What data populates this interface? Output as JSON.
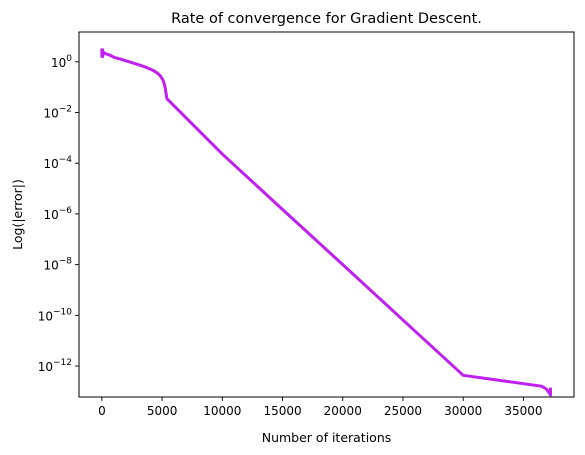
{
  "chart_data": {
    "type": "line",
    "title": "Rate of convergence for Gradient Descent.",
    "xlabel": "Number of iterations",
    "ylabel": "Log(|error|)",
    "y_scale": "log",
    "xlim": [
      -1900,
      39200
    ],
    "ylim": [
      6e-14,
      15
    ],
    "x_ticks": [
      0,
      5000,
      10000,
      15000,
      20000,
      25000,
      30000,
      35000
    ],
    "x_tick_labels": [
      "0",
      "5000",
      "10000",
      "15000",
      "20000",
      "25000",
      "30000",
      "35000"
    ],
    "y_ticks": [
      {
        "value": 1,
        "base": "10",
        "exp": "0"
      },
      {
        "value": 0.01,
        "base": "10",
        "exp": "−2"
      },
      {
        "value": 0.0001,
        "base": "10",
        "exp": "−4"
      },
      {
        "value": 1e-06,
        "base": "10",
        "exp": "−6"
      },
      {
        "value": 1e-08,
        "base": "10",
        "exp": "−8"
      },
      {
        "value": 1e-10,
        "base": "10",
        "exp": "−10"
      },
      {
        "value": 1e-12,
        "base": "10",
        "exp": "−12"
      }
    ],
    "grid": false,
    "series_color": "#c020f0",
    "series": [
      {
        "x": [
          0,
          0,
          60,
          60,
          120,
          300,
          700,
          1000,
          1500,
          2000,
          2500,
          3000,
          3500,
          4000,
          4400,
          4700,
          4900,
          5050,
          5150,
          5250,
          5300,
          5350,
          5400,
          10000,
          15000,
          20000,
          25000,
          30000,
          36500,
          36900,
          37200,
          37250,
          37250
        ],
        "y": [
          1.5,
          3.0,
          3.0,
          1.6,
          2.4,
          2.1,
          1.8,
          1.5,
          1.3,
          1.1,
          0.92,
          0.78,
          0.65,
          0.52,
          0.42,
          0.33,
          0.26,
          0.2,
          0.15,
          0.1,
          0.07,
          0.05,
          0.035,
          0.00023,
          1.5e-06,
          1e-08,
          6.5e-11,
          4.3e-13,
          1.6e-13,
          1.25e-13,
          8e-14,
          7.2e-14,
          1.4e-13
        ]
      }
    ]
  }
}
